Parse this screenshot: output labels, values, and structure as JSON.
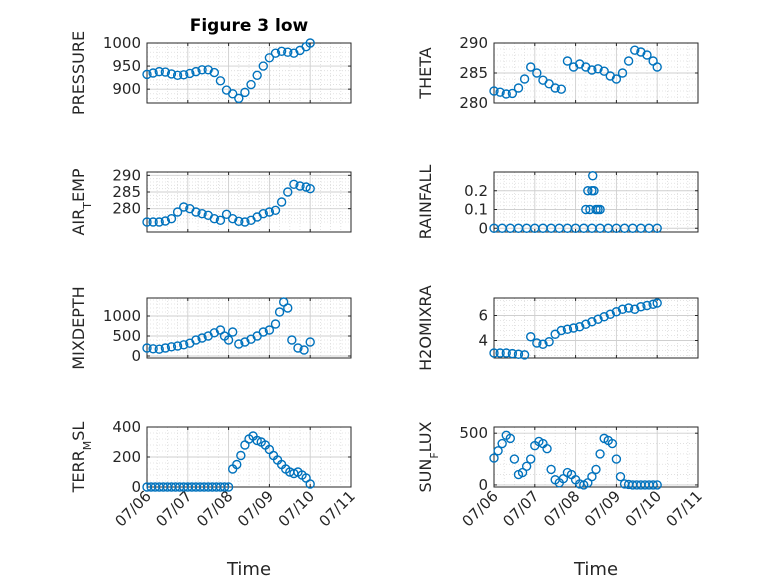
{
  "chart_data": [
    {
      "type": "scatter",
      "title": "Figure 3 low",
      "ylabel": "PRESSURE",
      "ylim": [
        870,
        1000
      ],
      "yticks": [
        900,
        950,
        1000
      ],
      "xlim": [
        0,
        5
      ],
      "xticks": [
        0,
        1,
        2,
        3,
        4,
        5
      ],
      "xticklabels": [],
      "color": "#0072BD",
      "grid": "on",
      "x": [
        0.0,
        0.15,
        0.3,
        0.45,
        0.6,
        0.75,
        0.9,
        1.05,
        1.2,
        1.35,
        1.5,
        1.65,
        1.8,
        1.95,
        2.1,
        2.25,
        2.4,
        2.55,
        2.7,
        2.85,
        3.0,
        3.15,
        3.3,
        3.45,
        3.6,
        3.75,
        3.9,
        4.0
      ],
      "y": [
        932,
        935,
        938,
        937,
        933,
        930,
        931,
        934,
        938,
        942,
        942,
        936,
        918,
        898,
        890,
        880,
        893,
        910,
        930,
        950,
        968,
        978,
        982,
        980,
        978,
        984,
        992,
        1000
      ]
    },
    {
      "type": "scatter",
      "title": "",
      "ylabel": "THETA",
      "ylim": [
        280,
        290
      ],
      "yticks": [
        280,
        285,
        290
      ],
      "xlim": [
        0,
        5
      ],
      "xticks": [
        0,
        1,
        2,
        3,
        4,
        5
      ],
      "xticklabels": [],
      "color": "#0072BD",
      "grid": "on",
      "x": [
        0.0,
        0.15,
        0.3,
        0.45,
        0.6,
        0.75,
        0.9,
        1.05,
        1.2,
        1.35,
        1.5,
        1.65,
        1.8,
        1.95,
        2.1,
        2.25,
        2.4,
        2.55,
        2.7,
        2.85,
        3.0,
        3.15,
        3.3,
        3.45,
        3.6,
        3.75,
        3.9,
        4.0
      ],
      "y": [
        282,
        281.8,
        281.5,
        281.6,
        282.5,
        284,
        286,
        285,
        283.8,
        283.2,
        282.5,
        282.3,
        287,
        286,
        286.5,
        286,
        285.5,
        285.7,
        285.3,
        284.5,
        284,
        285,
        287,
        288.8,
        288.5,
        288,
        287,
        286
      ]
    },
    {
      "type": "scatter",
      "title": "",
      "ylabel": "AIR_T_EMP",
      "ylim": [
        273,
        291
      ],
      "yticks": [
        280,
        285,
        290
      ],
      "xlim": [
        0,
        5
      ],
      "xticks": [
        0,
        1,
        2,
        3,
        4,
        5
      ],
      "xticklabels": [],
      "color": "#0072BD",
      "grid": "on",
      "x": [
        0.0,
        0.15,
        0.3,
        0.45,
        0.6,
        0.75,
        0.9,
        1.05,
        1.2,
        1.35,
        1.5,
        1.65,
        1.8,
        1.95,
        2.1,
        2.25,
        2.4,
        2.55,
        2.7,
        2.85,
        3.0,
        3.15,
        3.3,
        3.45,
        3.6,
        3.75,
        3.9,
        4.0
      ],
      "y": [
        276,
        276,
        276,
        276.3,
        277,
        279,
        280.5,
        280,
        279,
        278.5,
        278,
        277,
        276.5,
        278.3,
        277,
        276.2,
        276,
        276.5,
        277.5,
        278.5,
        279,
        279.5,
        282,
        285,
        287.3,
        286.8,
        286.5,
        286
      ]
    },
    {
      "type": "scatter",
      "title": "",
      "ylabel": "RAINFALL",
      "ylim": [
        -0.02,
        0.3
      ],
      "yticks": [
        0,
        0.1,
        0.2
      ],
      "xlim": [
        0,
        5
      ],
      "xticks": [
        0,
        1,
        2,
        3,
        4,
        5
      ],
      "xticklabels": [],
      "color": "#0072BD",
      "grid": "on",
      "x": [
        0.0,
        0.2,
        0.4,
        0.6,
        0.8,
        1.0,
        1.2,
        1.4,
        1.6,
        1.8,
        2.0,
        2.2,
        2.4,
        2.6,
        2.8,
        3.0,
        3.2,
        3.4,
        3.6,
        3.8,
        4.0,
        2.25,
        2.3,
        2.35,
        2.45,
        2.5,
        2.4,
        2.55,
        2.6,
        2.42
      ],
      "y": [
        0,
        0,
        0,
        0,
        0,
        0,
        0,
        0,
        0,
        0,
        0,
        0,
        0,
        0,
        0,
        0,
        0,
        0,
        0,
        0,
        0,
        0.1,
        0.2,
        0.1,
        0.2,
        0.1,
        0.2,
        0.1,
        0.1,
        0.28
      ]
    },
    {
      "type": "scatter",
      "title": "",
      "ylabel": "MIXDEPTH",
      "ylim": [
        -50,
        1450
      ],
      "yticks": [
        0,
        500,
        1000
      ],
      "xlim": [
        0,
        5
      ],
      "xticks": [
        0,
        1,
        2,
        3,
        4,
        5
      ],
      "xticklabels": [],
      "color": "#0072BD",
      "grid": "on",
      "x": [
        0.0,
        0.15,
        0.3,
        0.45,
        0.6,
        0.75,
        0.9,
        1.05,
        1.2,
        1.35,
        1.5,
        1.65,
        1.8,
        1.9,
        2.0,
        2.1,
        2.25,
        2.4,
        2.55,
        2.7,
        2.85,
        3.0,
        3.15,
        3.25,
        3.35,
        3.45,
        3.55,
        3.7,
        3.85,
        4.0
      ],
      "y": [
        200,
        180,
        170,
        200,
        230,
        250,
        280,
        320,
        400,
        450,
        500,
        580,
        650,
        500,
        400,
        600,
        300,
        350,
        420,
        500,
        600,
        650,
        800,
        1100,
        1350,
        1200,
        400,
        200,
        150,
        350
      ]
    },
    {
      "type": "scatter",
      "title": "",
      "ylabel": "H2OMIXRA",
      "ylim": [
        2.6,
        7.4
      ],
      "yticks": [
        4,
        6
      ],
      "xlim": [
        0,
        5
      ],
      "xticks": [
        0,
        1,
        2,
        3,
        4,
        5
      ],
      "xticklabels": [],
      "color": "#0072BD",
      "grid": "on",
      "x": [
        0.0,
        0.15,
        0.3,
        0.45,
        0.6,
        0.75,
        0.9,
        1.05,
        1.2,
        1.35,
        1.5,
        1.65,
        1.8,
        1.95,
        2.1,
        2.25,
        2.4,
        2.55,
        2.7,
        2.85,
        3.0,
        3.15,
        3.3,
        3.45,
        3.6,
        3.75,
        3.9,
        4.0
      ],
      "y": [
        3,
        3,
        3,
        2.95,
        2.9,
        2.85,
        4.3,
        3.8,
        3.7,
        3.9,
        4.5,
        4.8,
        4.9,
        5.0,
        5.1,
        5.3,
        5.5,
        5.7,
        5.9,
        6.1,
        6.3,
        6.5,
        6.6,
        6.5,
        6.7,
        6.8,
        6.9,
        7.0
      ]
    },
    {
      "type": "scatter",
      "title": "",
      "ylabel": "TERR_M_SL",
      "ylim": [
        0,
        400
      ],
      "yticks": [
        0,
        200,
        400
      ],
      "xlim": [
        0,
        5
      ],
      "xticks": [
        0,
        1,
        2,
        3,
        4,
        5
      ],
      "xticklabels": [
        "07/06",
        "07/07",
        "07/08",
        "07/09",
        "07/10",
        "07/11"
      ],
      "xlabel": "Time",
      "color": "#0072BD",
      "grid": "on",
      "x": [
        0.0,
        0.1,
        0.2,
        0.3,
        0.4,
        0.5,
        0.6,
        0.7,
        0.8,
        0.9,
        1.0,
        1.1,
        1.2,
        1.3,
        1.4,
        1.5,
        1.6,
        1.7,
        1.8,
        1.9,
        2.0,
        2.1,
        2.2,
        2.3,
        2.4,
        2.5,
        2.6,
        2.7,
        2.8,
        2.9,
        3.0,
        3.1,
        3.2,
        3.3,
        3.4,
        3.5,
        3.6,
        3.7,
        3.8,
        3.9,
        4.0
      ],
      "y": [
        0,
        0,
        0,
        0,
        0,
        0,
        0,
        0,
        0,
        0,
        0,
        0,
        0,
        0,
        0,
        0,
        0,
        0,
        0,
        0,
        0,
        120,
        150,
        210,
        280,
        320,
        340,
        310,
        300,
        280,
        250,
        210,
        180,
        150,
        120,
        100,
        90,
        100,
        80,
        60,
        20
      ]
    },
    {
      "type": "scatter",
      "title": "",
      "ylabel": "SUN_F_LUX",
      "ylim": [
        -20,
        560
      ],
      "yticks": [
        0,
        500
      ],
      "xlim": [
        0,
        5
      ],
      "xticks": [
        0,
        1,
        2,
        3,
        4,
        5
      ],
      "xticklabels": [
        "07/06",
        "07/07",
        "07/08",
        "07/09",
        "07/10",
        "07/11"
      ],
      "xlabel": "Time",
      "color": "#0072BD",
      "grid": "on",
      "x": [
        0.0,
        0.1,
        0.2,
        0.3,
        0.4,
        0.5,
        0.6,
        0.7,
        0.8,
        0.9,
        1.0,
        1.1,
        1.2,
        1.3,
        1.4,
        1.5,
        1.6,
        1.7,
        1.8,
        1.9,
        2.0,
        2.1,
        2.2,
        2.3,
        2.4,
        2.5,
        2.6,
        2.7,
        2.8,
        2.9,
        3.0,
        3.1,
        3.2,
        3.3,
        3.4,
        3.5,
        3.6,
        3.7,
        3.8,
        3.9,
        4.0
      ],
      "y": [
        260,
        330,
        400,
        480,
        450,
        250,
        100,
        120,
        180,
        250,
        380,
        420,
        400,
        350,
        150,
        50,
        20,
        60,
        120,
        100,
        50,
        10,
        0,
        20,
        80,
        150,
        300,
        450,
        430,
        400,
        250,
        80,
        10,
        5,
        0,
        0,
        0,
        0,
        0,
        0,
        0
      ]
    }
  ]
}
